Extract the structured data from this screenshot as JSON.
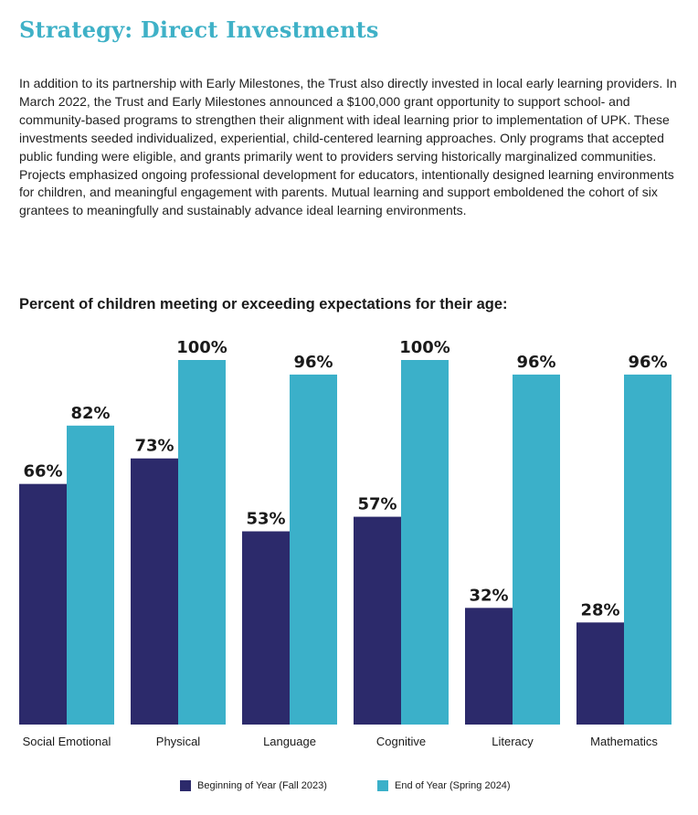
{
  "header": {
    "title": "Strategy: Direct Investments"
  },
  "intro": {
    "paragraph": "In addition to its partnership with Early Milestones, the Trust also directly invested in local early learning providers. In March 2022, the Trust and Early Milestones announced a $100,000 grant opportunity to support school- and community-based programs to strengthen their alignment with ideal learning prior to implementation of UPK. These investments seeded individualized, experiential, child-centered learning approaches. Only programs that accepted public funding were eligible, and grants primarily went to providers serving historically marginalized communities. Projects emphasized ongoing professional development for educators, intentionally designed learning environments for children, and meaningful engagement with parents. Mutual learning and support emboldened the cohort of six grantees to meaningfully and sustainably advance ideal learning environments."
  },
  "chart_data": {
    "type": "bar",
    "title": "Percent of children meeting or exceeding expectations for their age:",
    "categories": [
      "Social Emotional",
      "Physical",
      "Language",
      "Cognitive",
      "Literacy",
      "Mathematics"
    ],
    "series": [
      {
        "name": "Beginning of Year (Fall 2023)",
        "values": [
          66,
          73,
          53,
          57,
          32,
          28
        ],
        "labels": [
          "66%",
          "73%",
          "53%",
          "57%",
          "32%",
          "28%"
        ],
        "color": "#2c2a6b"
      },
      {
        "name": "End of Year (Spring 2024)",
        "values": [
          82,
          100,
          96,
          100,
          96,
          96
        ],
        "labels": [
          "82%",
          "100%",
          "96%",
          "100%",
          "96%",
          "96%"
        ],
        "color": "#3bb0c9"
      }
    ],
    "ylim": [
      0,
      100
    ],
    "grid": false,
    "legend_position": "bottom"
  }
}
